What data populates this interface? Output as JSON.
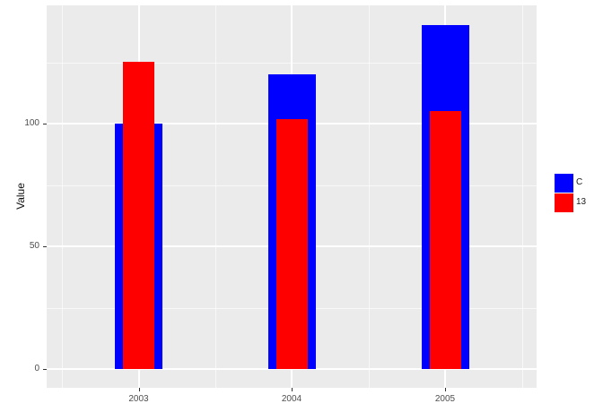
{
  "chart_data": {
    "type": "bar",
    "title": "",
    "xlabel": "",
    "ylabel": "Value",
    "categories": [
      "2003",
      "2004",
      "2005"
    ],
    "series": [
      {
        "name": "C",
        "color": "#0000ff",
        "values": [
          100,
          120,
          140
        ]
      },
      {
        "name": "13",
        "color": "#ff0000",
        "values": [
          125,
          102,
          105
        ]
      }
    ],
    "bar_style": "overlaid (position identity): wide blue bars behind, narrower red bars in front",
    "y_ticks": [
      0,
      50,
      100
    ],
    "y_tick_labels": [
      "0",
      "50",
      "100"
    ],
    "y_minor_gridlines": [
      25,
      75,
      125
    ],
    "ylim": [
      0,
      147
    ],
    "grid": "white major and minor gridlines on gray panel (ggplot2 default theme)",
    "panel_background": "#ebebeb",
    "gridline_color": "#ffffff",
    "tick_label_color": "#4d4d4d",
    "legend_position": "right"
  },
  "legend": {
    "items": [
      {
        "label": "C",
        "color": "#0000ff"
      },
      {
        "label": "13",
        "color": "#ff0000"
      }
    ]
  }
}
